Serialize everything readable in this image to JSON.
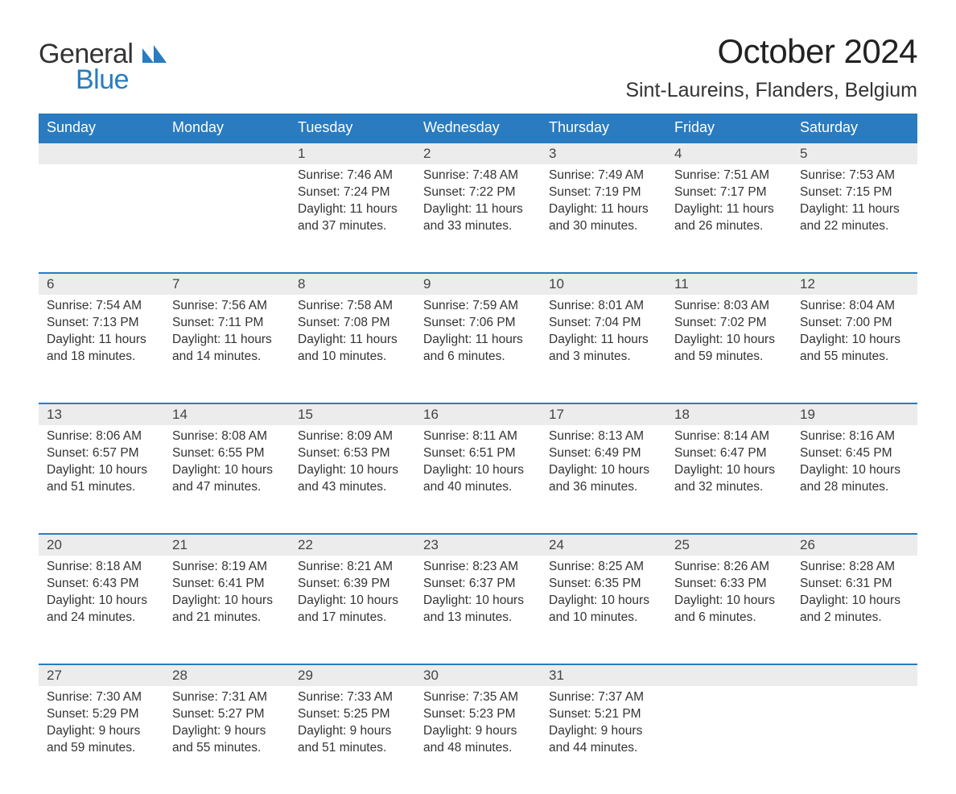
{
  "brand": {
    "word1": "General",
    "word2": "Blue",
    "color_dark": "#333333",
    "color_blue": "#2a7bbf"
  },
  "header": {
    "title": "October 2024",
    "location": "Sint-Laureins, Flanders, Belgium",
    "title_fontsize": 42,
    "location_fontsize": 25
  },
  "styling": {
    "header_bg": "#2a7bbf",
    "header_text": "#ffffff",
    "daynum_bg": "#ececec",
    "daynum_border_top": "#2a7bbf",
    "body_text": "#333333",
    "page_bg": "#ffffff",
    "cell_fontsize": 15.5,
    "header_fontsize": 18,
    "daynum_fontsize": 17
  },
  "calendar": {
    "type": "table",
    "weekdays": [
      "Sunday",
      "Monday",
      "Tuesday",
      "Wednesday",
      "Thursday",
      "Friday",
      "Saturday"
    ],
    "labels": {
      "sunrise": "Sunrise:",
      "sunset": "Sunset:",
      "daylight": "Daylight:"
    },
    "weeks": [
      [
        null,
        null,
        {
          "n": "1",
          "sunrise": "7:46 AM",
          "sunset": "7:24 PM",
          "daylight": "11 hours and 37 minutes."
        },
        {
          "n": "2",
          "sunrise": "7:48 AM",
          "sunset": "7:22 PM",
          "daylight": "11 hours and 33 minutes."
        },
        {
          "n": "3",
          "sunrise": "7:49 AM",
          "sunset": "7:19 PM",
          "daylight": "11 hours and 30 minutes."
        },
        {
          "n": "4",
          "sunrise": "7:51 AM",
          "sunset": "7:17 PM",
          "daylight": "11 hours and 26 minutes."
        },
        {
          "n": "5",
          "sunrise": "7:53 AM",
          "sunset": "7:15 PM",
          "daylight": "11 hours and 22 minutes."
        }
      ],
      [
        {
          "n": "6",
          "sunrise": "7:54 AM",
          "sunset": "7:13 PM",
          "daylight": "11 hours and 18 minutes."
        },
        {
          "n": "7",
          "sunrise": "7:56 AM",
          "sunset": "7:11 PM",
          "daylight": "11 hours and 14 minutes."
        },
        {
          "n": "8",
          "sunrise": "7:58 AM",
          "sunset": "7:08 PM",
          "daylight": "11 hours and 10 minutes."
        },
        {
          "n": "9",
          "sunrise": "7:59 AM",
          "sunset": "7:06 PM",
          "daylight": "11 hours and 6 minutes."
        },
        {
          "n": "10",
          "sunrise": "8:01 AM",
          "sunset": "7:04 PM",
          "daylight": "11 hours and 3 minutes."
        },
        {
          "n": "11",
          "sunrise": "8:03 AM",
          "sunset": "7:02 PM",
          "daylight": "10 hours and 59 minutes."
        },
        {
          "n": "12",
          "sunrise": "8:04 AM",
          "sunset": "7:00 PM",
          "daylight": "10 hours and 55 minutes."
        }
      ],
      [
        {
          "n": "13",
          "sunrise": "8:06 AM",
          "sunset": "6:57 PM",
          "daylight": "10 hours and 51 minutes."
        },
        {
          "n": "14",
          "sunrise": "8:08 AM",
          "sunset": "6:55 PM",
          "daylight": "10 hours and 47 minutes."
        },
        {
          "n": "15",
          "sunrise": "8:09 AM",
          "sunset": "6:53 PM",
          "daylight": "10 hours and 43 minutes."
        },
        {
          "n": "16",
          "sunrise": "8:11 AM",
          "sunset": "6:51 PM",
          "daylight": "10 hours and 40 minutes."
        },
        {
          "n": "17",
          "sunrise": "8:13 AM",
          "sunset": "6:49 PM",
          "daylight": "10 hours and 36 minutes."
        },
        {
          "n": "18",
          "sunrise": "8:14 AM",
          "sunset": "6:47 PM",
          "daylight": "10 hours and 32 minutes."
        },
        {
          "n": "19",
          "sunrise": "8:16 AM",
          "sunset": "6:45 PM",
          "daylight": "10 hours and 28 minutes."
        }
      ],
      [
        {
          "n": "20",
          "sunrise": "8:18 AM",
          "sunset": "6:43 PM",
          "daylight": "10 hours and 24 minutes."
        },
        {
          "n": "21",
          "sunrise": "8:19 AM",
          "sunset": "6:41 PM",
          "daylight": "10 hours and 21 minutes."
        },
        {
          "n": "22",
          "sunrise": "8:21 AM",
          "sunset": "6:39 PM",
          "daylight": "10 hours and 17 minutes."
        },
        {
          "n": "23",
          "sunrise": "8:23 AM",
          "sunset": "6:37 PM",
          "daylight": "10 hours and 13 minutes."
        },
        {
          "n": "24",
          "sunrise": "8:25 AM",
          "sunset": "6:35 PM",
          "daylight": "10 hours and 10 minutes."
        },
        {
          "n": "25",
          "sunrise": "8:26 AM",
          "sunset": "6:33 PM",
          "daylight": "10 hours and 6 minutes."
        },
        {
          "n": "26",
          "sunrise": "8:28 AM",
          "sunset": "6:31 PM",
          "daylight": "10 hours and 2 minutes."
        }
      ],
      [
        {
          "n": "27",
          "sunrise": "7:30 AM",
          "sunset": "5:29 PM",
          "daylight": "9 hours and 59 minutes."
        },
        {
          "n": "28",
          "sunrise": "7:31 AM",
          "sunset": "5:27 PM",
          "daylight": "9 hours and 55 minutes."
        },
        {
          "n": "29",
          "sunrise": "7:33 AM",
          "sunset": "5:25 PM",
          "daylight": "9 hours and 51 minutes."
        },
        {
          "n": "30",
          "sunrise": "7:35 AM",
          "sunset": "5:23 PM",
          "daylight": "9 hours and 48 minutes."
        },
        {
          "n": "31",
          "sunrise": "7:37 AM",
          "sunset": "5:21 PM",
          "daylight": "9 hours and 44 minutes."
        },
        null,
        null
      ]
    ]
  }
}
